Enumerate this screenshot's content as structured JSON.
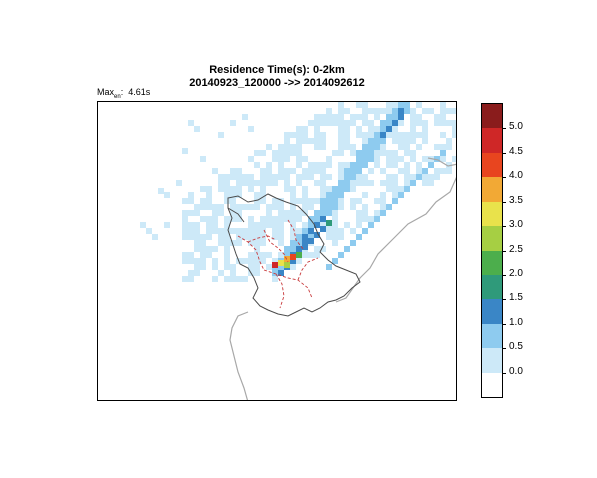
{
  "title": {
    "line1": "Residence Time(s): 0-2km",
    "line2": "20140923_120000 ->> 2014092612"
  },
  "max_label": {
    "prefix": "Max",
    "subscript": "en",
    "value": "4.61s"
  },
  "legend": {
    "labels": [
      "5.0",
      "4.5",
      "4.0",
      "3.5",
      "3.0",
      "2.5",
      "2.0",
      "1.5",
      "1.0",
      "0.5",
      "0.0"
    ],
    "colors": [
      "#8a1c1c",
      "#cf2727",
      "#e8451f",
      "#f2a935",
      "#e9e24b",
      "#a6cf43",
      "#4cae4c",
      "#2f9a7a",
      "#3a86c6",
      "#8ecbef",
      "#cde9f8",
      "#ffffff"
    ]
  },
  "colors": {
    "coast": "#a8a8a8",
    "border": "#4a4a4a",
    "district": "#c8383a"
  }
}
